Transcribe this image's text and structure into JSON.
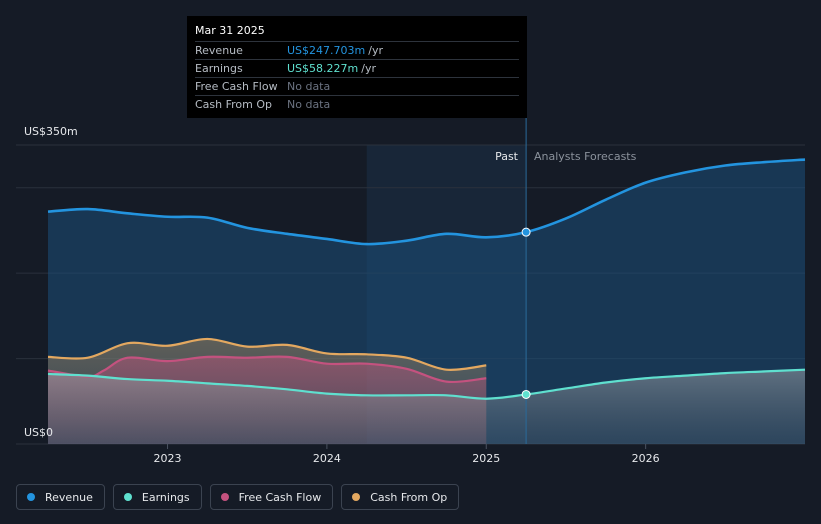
{
  "tooltip": {
    "date": "Mar 31 2025",
    "rows": [
      {
        "label": "Revenue",
        "value": "US$247.703m",
        "unit": "/yr",
        "color": "#2394df"
      },
      {
        "label": "Earnings",
        "value": "US$58.227m",
        "unit": "/yr",
        "color": "#5fe0cf"
      },
      {
        "label": "Free Cash Flow",
        "value": "No data",
        "unit": "",
        "color": "#6b7280"
      },
      {
        "label": "Cash From Op",
        "value": "No data",
        "unit": "",
        "color": "#6b7280"
      }
    ]
  },
  "legend": [
    {
      "label": "Revenue",
      "color": "#2394df"
    },
    {
      "label": "Earnings",
      "color": "#5fe0cf"
    },
    {
      "label": "Free Cash Flow",
      "color": "#c4527f"
    },
    {
      "label": "Cash From Op",
      "color": "#e3a860"
    }
  ],
  "chart_data": {
    "type": "line",
    "ylabel_top": "US$350m",
    "ylabel_bottom": "US$0",
    "ylim": [
      0,
      350
    ],
    "xlim": [
      2022.25,
      2027.0
    ],
    "x_ticks": [
      2023,
      2024,
      2025,
      2026
    ],
    "x_tick_labels": [
      "2023",
      "2024",
      "2025",
      "2026"
    ],
    "past_label": "Past",
    "forecast_label": "Analysts Forecasts",
    "past_region_start": 2024.25,
    "forecast_start": 2025.25,
    "highlight_x": 2025.25,
    "series": [
      {
        "name": "Revenue",
        "color": "#2394df",
        "area": true,
        "points": [
          [
            2022.25,
            272
          ],
          [
            2022.5,
            275
          ],
          [
            2022.75,
            270
          ],
          [
            2023.0,
            266
          ],
          [
            2023.25,
            265
          ],
          [
            2023.5,
            253
          ],
          [
            2023.75,
            246
          ],
          [
            2024.0,
            240
          ],
          [
            2024.25,
            234
          ],
          [
            2024.5,
            238
          ],
          [
            2024.75,
            246
          ],
          [
            2025.0,
            242
          ],
          [
            2025.25,
            248
          ],
          [
            2025.5,
            264
          ],
          [
            2025.75,
            286
          ],
          [
            2026.0,
            306
          ],
          [
            2026.25,
            318
          ],
          [
            2026.5,
            326
          ],
          [
            2026.75,
            330
          ],
          [
            2027.0,
            333
          ]
        ]
      },
      {
        "name": "Earnings",
        "color": "#5fe0cf",
        "area": true,
        "points": [
          [
            2022.25,
            82
          ],
          [
            2022.5,
            80
          ],
          [
            2022.75,
            76
          ],
          [
            2023.0,
            74
          ],
          [
            2023.25,
            71
          ],
          [
            2023.5,
            68
          ],
          [
            2023.75,
            64
          ],
          [
            2024.0,
            59
          ],
          [
            2024.25,
            57
          ],
          [
            2024.5,
            57
          ],
          [
            2024.75,
            57
          ],
          [
            2025.0,
            53
          ],
          [
            2025.25,
            58
          ],
          [
            2025.5,
            65
          ],
          [
            2025.75,
            72
          ],
          [
            2026.0,
            77
          ],
          [
            2026.25,
            80
          ],
          [
            2026.5,
            83
          ],
          [
            2026.75,
            85
          ],
          [
            2027.0,
            87
          ]
        ]
      },
      {
        "name": "Free Cash Flow",
        "color": "#c4527f",
        "area": true,
        "points": [
          [
            2022.25,
            86
          ],
          [
            2022.5,
            79
          ],
          [
            2022.6,
            86
          ],
          [
            2022.75,
            101
          ],
          [
            2023.0,
            97
          ],
          [
            2023.25,
            102
          ],
          [
            2023.5,
            101
          ],
          [
            2023.75,
            102
          ],
          [
            2024.0,
            94
          ],
          [
            2024.25,
            94
          ],
          [
            2024.5,
            88
          ],
          [
            2024.75,
            73
          ],
          [
            2025.0,
            77
          ]
        ]
      },
      {
        "name": "Cash From Op",
        "color": "#e3a860",
        "area": true,
        "points": [
          [
            2022.25,
            102
          ],
          [
            2022.5,
            101
          ],
          [
            2022.75,
            118
          ],
          [
            2023.0,
            115
          ],
          [
            2023.25,
            123
          ],
          [
            2023.5,
            114
          ],
          [
            2023.75,
            116
          ],
          [
            2024.0,
            106
          ],
          [
            2024.25,
            105
          ],
          [
            2024.5,
            101
          ],
          [
            2024.75,
            87
          ],
          [
            2025.0,
            92
          ]
        ]
      }
    ]
  }
}
